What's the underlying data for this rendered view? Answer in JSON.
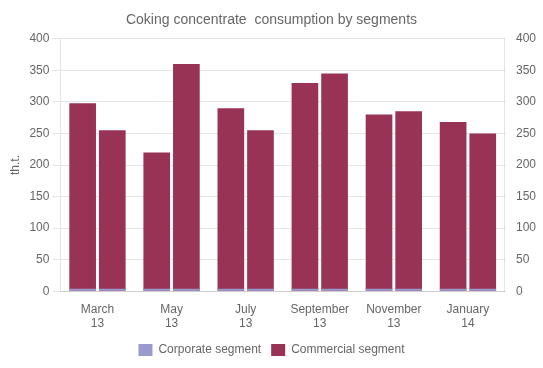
{
  "chart_data": {
    "type": "bar",
    "title": "Coking concentrate  consumption by segments",
    "ylabel": "th.t.",
    "categories": [
      "March\n13",
      "May\n13",
      "July\n13",
      "September\n13",
      "November\n13",
      "January\n14"
    ],
    "series": [
      {
        "name": "Corporate segment",
        "color": "#9999cc",
        "values": [
          [
            4,
            4
          ],
          [
            4,
            4
          ],
          [
            4,
            4
          ],
          [
            4,
            4
          ],
          [
            4,
            4
          ],
          [
            4,
            4
          ]
        ]
      },
      {
        "name": "Commercial segment",
        "color": "#993355",
        "values": [
          [
            298,
            255
          ],
          [
            220,
            360
          ],
          [
            290,
            255
          ],
          [
            330,
            345
          ],
          [
            280,
            285
          ],
          [
            268,
            250
          ]
        ]
      }
    ],
    "ylim": [
      0,
      400
    ],
    "yticks": [
      0,
      50,
      100,
      150,
      200,
      250,
      300,
      350,
      400
    ],
    "y2lim": [
      0,
      400
    ],
    "y2ticks": [
      0,
      50,
      100,
      150,
      200,
      250,
      300,
      350,
      400
    ],
    "grid": true,
    "legend": "bottom"
  }
}
